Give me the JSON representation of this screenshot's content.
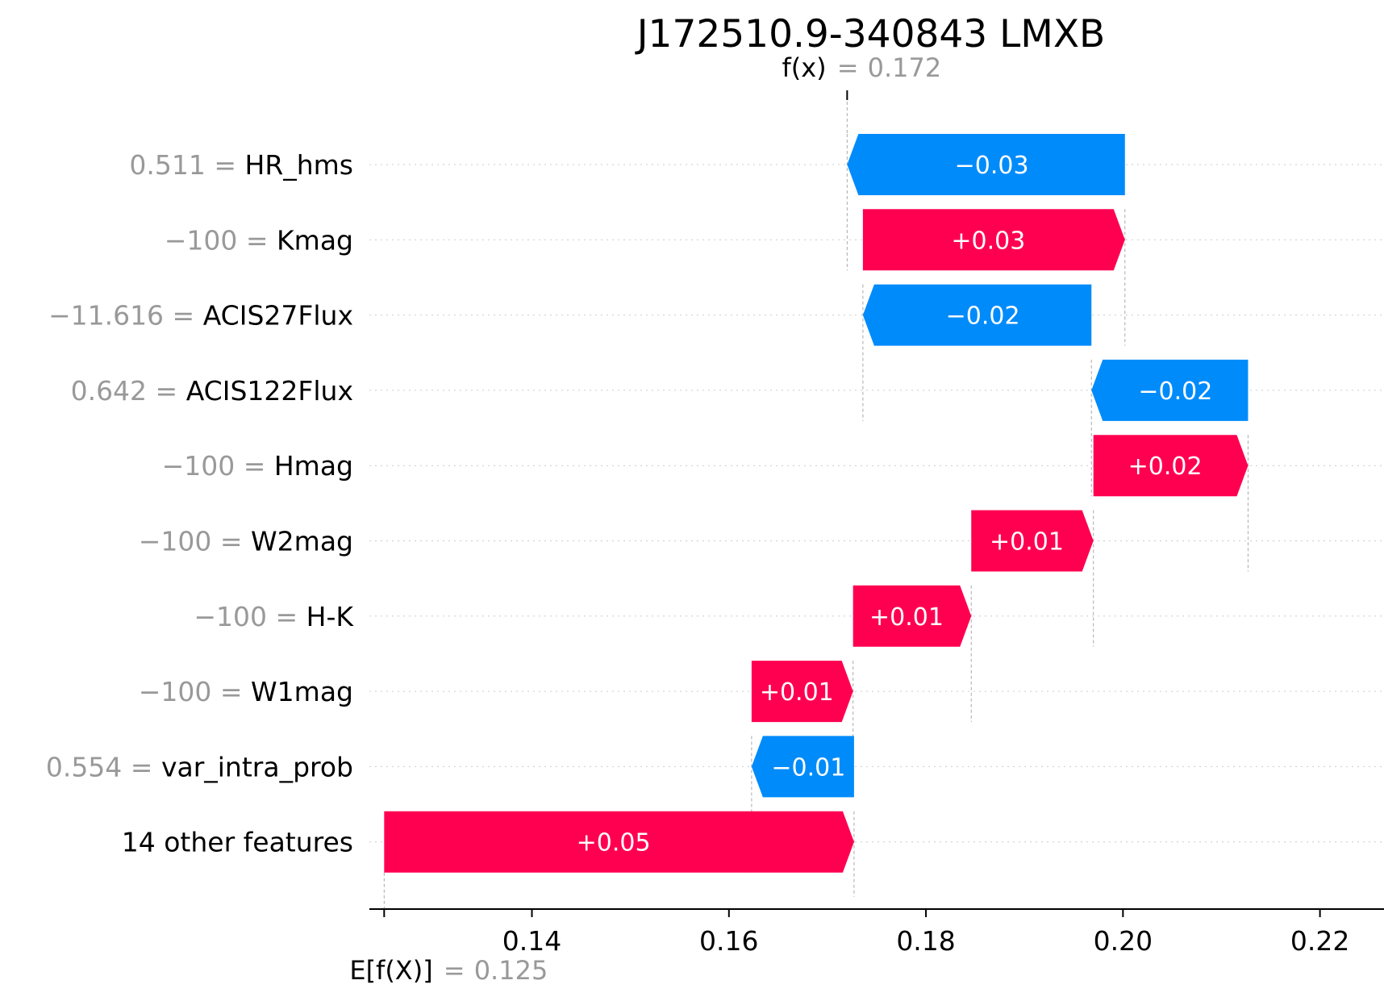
{
  "chart_data": {
    "type": "waterfall",
    "title": "J172510.9-340843 LMXB",
    "fx": {
      "label": "f(x)",
      "value": "0.172",
      "number": 0.172
    },
    "efx": {
      "label": "E[f(X)]",
      "value": "0.125",
      "number": 0.125
    },
    "xlim": [
      0.1235,
      0.2265
    ],
    "xticks": [
      0.14,
      0.16,
      0.18,
      0.2,
      0.22
    ],
    "xtick_labels": [
      "0.14",
      "0.16",
      "0.18",
      "0.20",
      "0.22"
    ],
    "colors": {
      "positive": "#ff0051",
      "negative": "#008bfb"
    },
    "features": [
      {
        "value": "0.511",
        "name": "HR_hms",
        "label": "−0.03",
        "start": 0.2002,
        "end": 0.172
      },
      {
        "value": "−100",
        "name": "Kmag",
        "label": "+0.03",
        "start": 0.1736,
        "end": 0.2002
      },
      {
        "value": "−11.616",
        "name": "ACIS27Flux",
        "label": "−0.02",
        "start": 0.1968,
        "end": 0.1736
      },
      {
        "value": "0.642",
        "name": "ACIS122Flux",
        "label": "−0.02",
        "start": 0.2127,
        "end": 0.1968
      },
      {
        "value": "−100",
        "name": "Hmag",
        "label": "+0.02",
        "start": 0.197,
        "end": 0.2127
      },
      {
        "value": "−100",
        "name": "W2mag",
        "label": "+0.01",
        "start": 0.1846,
        "end": 0.197
      },
      {
        "value": "−100",
        "name": "H-K",
        "label": "+0.01",
        "start": 0.1726,
        "end": 0.1846
      },
      {
        "value": "−100",
        "name": "W1mag",
        "label": "+0.01",
        "start": 0.1623,
        "end": 0.1726
      },
      {
        "value": "0.554",
        "name": "var_intra_prob",
        "label": "−0.01",
        "start": 0.1727,
        "end": 0.1623
      },
      {
        "value": "",
        "name": "14 other features",
        "label": "+0.05",
        "start": 0.125,
        "end": 0.1727
      }
    ]
  }
}
